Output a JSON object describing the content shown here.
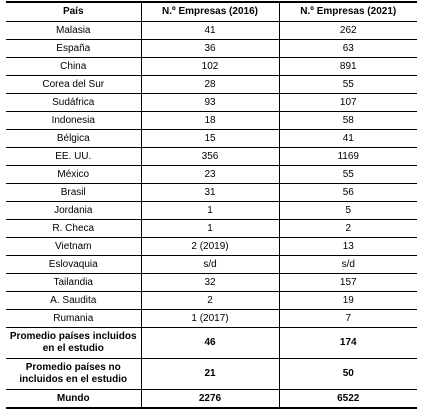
{
  "table": {
    "headers": [
      "País",
      "N.º Empresas (2016)",
      "N.º Empresas (2021)"
    ],
    "rows": [
      [
        "Malasia",
        "41",
        "262"
      ],
      [
        "España",
        "36",
        "63"
      ],
      [
        "China",
        "102",
        "891"
      ],
      [
        "Corea del Sur",
        "28",
        "55"
      ],
      [
        "Sudáfrica",
        "93",
        "107"
      ],
      [
        "Indonesia",
        "18",
        "58"
      ],
      [
        "Bélgica",
        "15",
        "41"
      ],
      [
        "EE. UU.",
        "356",
        "1169"
      ],
      [
        "México",
        "23",
        "55"
      ],
      [
        "Brasil",
        "31",
        "56"
      ],
      [
        "Jordania",
        "1",
        "5"
      ],
      [
        "R. Checa",
        "1",
        "2"
      ],
      [
        "Vietnam",
        "2 (2019)",
        "13"
      ],
      [
        "Eslovaquia",
        "s/d",
        "s/d"
      ],
      [
        "Tailandia",
        "32",
        "157"
      ],
      [
        "A. Saudita",
        "2",
        "19"
      ],
      [
        "Rumania",
        "1 (2017)",
        "7"
      ]
    ],
    "summary_rows": [
      [
        "Promedio países incluidos en el estudio",
        "46",
        "174"
      ],
      [
        "Promedio países no incluidos en el estudio",
        "21",
        "50"
      ]
    ],
    "total_row": [
      "Mundo",
      "2276",
      "6522"
    ]
  }
}
